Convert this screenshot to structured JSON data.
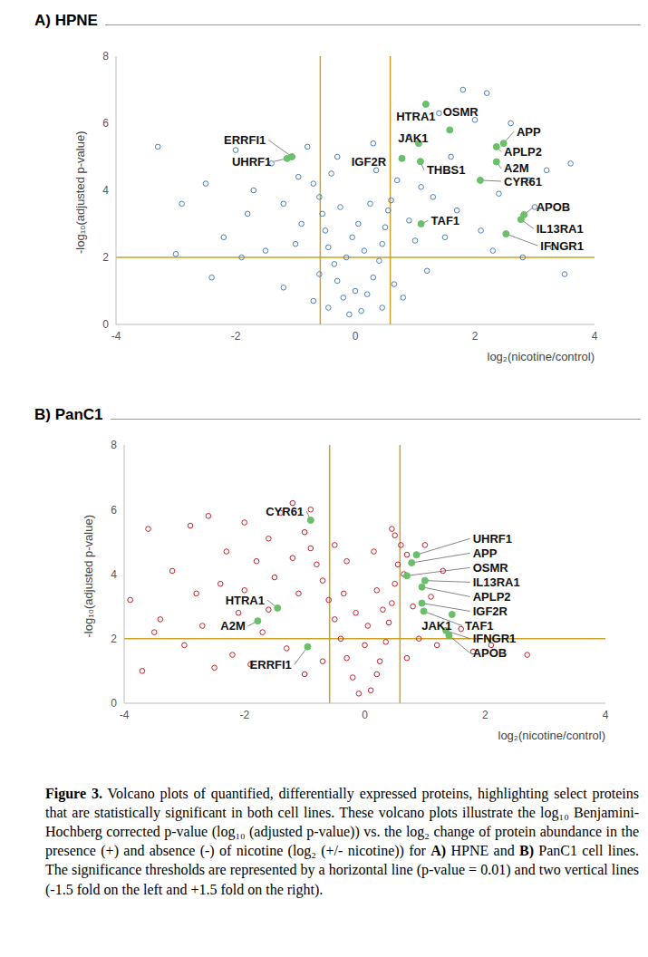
{
  "chart_data": [
    {
      "type": "scatter",
      "title": "A) HPNE",
      "x_label": "log₂(nicotine/control)",
      "y_label": "-log₁₀(adjusted p-value)",
      "xlim": [
        -4,
        4
      ],
      "xticks": [
        -4,
        -2,
        0,
        2,
        4
      ],
      "ylim": [
        0,
        8
      ],
      "yticks": [
        0,
        2,
        4,
        6,
        8
      ],
      "reference_lines": {
        "x": [
          -0.585,
          0.585
        ],
        "y": [
          2
        ],
        "color": "#c9a227"
      },
      "series": [
        {
          "color": "#4a7fc1",
          "marker": "open_circle",
          "points": [
            [
              -0.1,
              0.3
            ],
            [
              0.1,
              0.4
            ],
            [
              -0.2,
              0.8
            ],
            [
              0.2,
              0.9
            ],
            [
              -0.3,
              1.3
            ],
            [
              0.3,
              1.4
            ],
            [
              -0.35,
              1.8
            ],
            [
              0.4,
              1.9
            ],
            [
              -0.45,
              2.3
            ],
            [
              0.45,
              2.4
            ],
            [
              -0.5,
              2.8
            ],
            [
              0.5,
              2.9
            ],
            [
              -0.55,
              3.3
            ],
            [
              0.55,
              3.4
            ],
            [
              -0.6,
              3.8
            ],
            [
              0.6,
              3.7
            ],
            [
              -0.15,
              2.0
            ],
            [
              0.15,
              2.2
            ],
            [
              0.0,
              1.0
            ],
            [
              -0.05,
              2.6
            ],
            [
              0.05,
              3.0
            ],
            [
              -0.25,
              3.5
            ],
            [
              0.25,
              3.6
            ],
            [
              -0.7,
              4.2
            ],
            [
              0.7,
              4.3
            ],
            [
              -0.4,
              4.5
            ],
            [
              0.35,
              4.6
            ],
            [
              -0.9,
              3.0
            ],
            [
              0.9,
              3.1
            ],
            [
              -1.0,
              2.4
            ],
            [
              1.0,
              2.5
            ],
            [
              -1.2,
              3.6
            ],
            [
              1.3,
              3.8
            ],
            [
              -1.5,
              2.2
            ],
            [
              1.5,
              2.6
            ],
            [
              -1.8,
              3.3
            ],
            [
              1.7,
              3.4
            ],
            [
              -2.2,
              2.6
            ],
            [
              2.1,
              2.8
            ],
            [
              -2.5,
              4.2
            ],
            [
              2.4,
              3.9
            ],
            [
              -2.9,
              3.6
            ],
            [
              3.0,
              3.5
            ],
            [
              -1.4,
              4.8
            ],
            [
              1.6,
              5.0
            ],
            [
              -0.8,
              5.3
            ],
            [
              0.9,
              5.6
            ],
            [
              1.4,
              6.3
            ],
            [
              2.0,
              6.1
            ],
            [
              2.6,
              6.0
            ],
            [
              1.8,
              7.0
            ],
            [
              2.2,
              6.9
            ],
            [
              -3.3,
              5.3
            ],
            [
              -2.4,
              1.4
            ],
            [
              -1.9,
              2.0
            ],
            [
              3.5,
              1.5
            ],
            [
              2.8,
              2.0
            ],
            [
              -1.2,
              1.1
            ],
            [
              1.2,
              1.6
            ],
            [
              0.8,
              0.8
            ],
            [
              -0.7,
              0.7
            ],
            [
              0.45,
              0.5
            ],
            [
              -0.45,
              0.5
            ],
            [
              3.2,
              4.6
            ],
            [
              3.6,
              4.8
            ],
            [
              2.9,
              4.3
            ],
            [
              -1.7,
              4.0
            ],
            [
              -2.0,
              5.2
            ],
            [
              1.1,
              4.1
            ],
            [
              -0.95,
              4.4
            ],
            [
              0.3,
              5.4
            ],
            [
              -0.3,
              5.0
            ],
            [
              2.3,
              2.2
            ],
            [
              -0.6,
              1.5
            ],
            [
              0.65,
              1.2
            ],
            [
              -3.0,
              2.1
            ],
            [
              3.3,
              2.3
            ]
          ]
        }
      ],
      "highlights": {
        "color": "#6abf69",
        "points": [
          {
            "label": "HTRA1",
            "x": 1.18,
            "y": 6.57,
            "label_at": [
              0.64,
              6.2
            ]
          },
          {
            "label": "JAK1",
            "x": 1.06,
            "y": 5.4,
            "label_at": [
              0.67,
              5.55
            ]
          },
          {
            "label": "OSMR",
            "x": 1.58,
            "y": 5.8,
            "label_at": [
              1.42,
              6.35
            ]
          },
          {
            "label": "APP",
            "x": 2.48,
            "y": 5.4,
            "label_at": [
              2.65,
              5.75
            ]
          },
          {
            "label": "APLP2",
            "x": 2.36,
            "y": 5.3,
            "label_at": [
              2.44,
              5.15
            ]
          },
          {
            "label": "A2M",
            "x": 2.36,
            "y": 4.85,
            "label_at": [
              2.44,
              4.65
            ]
          },
          {
            "label": "CYR61",
            "x": 2.09,
            "y": 4.3,
            "label_at": [
              2.44,
              4.27
            ]
          },
          {
            "label": "THBS1",
            "x": 1.09,
            "y": 4.86,
            "label_at": [
              1.15,
              4.6
            ]
          },
          {
            "label": "IGF2R",
            "x": 0.78,
            "y": 4.95,
            "label_at": [
              -0.11,
              4.86
            ]
          },
          {
            "label": "ERRFI1",
            "x": -1.06,
            "y": 5.0,
            "label_at": [
              -1.45,
              5.5
            ]
          },
          {
            "label": "UHRF1",
            "x": -1.14,
            "y": 4.95,
            "label_at": [
              -1.36,
              4.86
            ]
          },
          {
            "label": "TAF1",
            "x": 1.1,
            "y": 3.0,
            "label_at": [
              1.22,
              3.1
            ]
          },
          {
            "label": "APOB",
            "x": 2.82,
            "y": 3.27,
            "label_at": [
              2.98,
              3.5
            ]
          },
          {
            "label": "IL13RA1",
            "x": 2.77,
            "y": 3.13,
            "label_at": [
              2.98,
              2.86
            ]
          },
          {
            "label": "IFNGR1",
            "x": 2.52,
            "y": 2.7,
            "label_at": [
              3.05,
              2.35
            ]
          }
        ]
      }
    },
    {
      "type": "scatter",
      "title": "B) PanC1",
      "x_label": "log₂(nicotine/control)",
      "y_label": "-log₁₀(adjusted p-value)",
      "xlim": [
        -4,
        4
      ],
      "xticks": [
        -4,
        -2,
        0,
        2,
        4
      ],
      "ylim": [
        0,
        8
      ],
      "yticks": [
        0,
        2,
        4,
        6,
        8
      ],
      "reference_lines": {
        "x": [
          -0.585,
          0.585
        ],
        "y": [
          2
        ],
        "color": "#c9a227"
      },
      "series": [
        {
          "color": "#c8202a",
          "marker": "open_circle",
          "points": [
            [
              -0.1,
              0.3
            ],
            [
              0.1,
              0.4
            ],
            [
              -0.2,
              0.8
            ],
            [
              0.2,
              0.9
            ],
            [
              -0.3,
              1.4
            ],
            [
              0.25,
              1.3
            ],
            [
              -0.4,
              2.0
            ],
            [
              0.35,
              1.9
            ],
            [
              -0.5,
              2.6
            ],
            [
              0.4,
              2.5
            ],
            [
              -0.6,
              3.2
            ],
            [
              0.45,
              3.1
            ],
            [
              -0.7,
              3.8
            ],
            [
              0.5,
              3.7
            ],
            [
              -0.8,
              4.3
            ],
            [
              0.55,
              4.3
            ],
            [
              -0.9,
              4.8
            ],
            [
              0.6,
              4.9
            ],
            [
              0.5,
              5.2
            ],
            [
              0.45,
              5.4
            ],
            [
              -1.0,
              5.3
            ],
            [
              -1.2,
              4.5
            ],
            [
              -1.4,
              5.9
            ],
            [
              -1.6,
              5.1
            ],
            [
              -1.8,
              4.4
            ],
            [
              -2.0,
              5.6
            ],
            [
              -2.3,
              4.7
            ],
            [
              -2.6,
              5.8
            ],
            [
              -2.9,
              5.5
            ],
            [
              -3.2,
              4.1
            ],
            [
              -3.6,
              5.4
            ],
            [
              -3.9,
              3.2
            ],
            [
              -3.4,
              2.6
            ],
            [
              -2.8,
              3.4
            ],
            [
              -2.4,
              3.7
            ],
            [
              -2.1,
              2.8
            ],
            [
              -1.7,
              2.2
            ],
            [
              -1.3,
              1.7
            ],
            [
              -1.1,
              3.4
            ],
            [
              -1.5,
              3.9
            ],
            [
              -2.5,
              1.1
            ],
            [
              -3.7,
              1.0
            ],
            [
              -3.0,
              1.8
            ],
            [
              -2.2,
              1.5
            ],
            [
              -1.9,
              1.2
            ],
            [
              -1.0,
              0.9
            ],
            [
              -0.7,
              1.3
            ],
            [
              0.7,
              1.4
            ],
            [
              0.9,
              2.0
            ],
            [
              1.1,
              3.3
            ],
            [
              1.3,
              4.1
            ],
            [
              1.2,
              1.8
            ],
            [
              1.6,
              2.3
            ],
            [
              2.1,
              1.8
            ],
            [
              2.7,
              1.5
            ],
            [
              1.8,
              1.6
            ],
            [
              0.8,
              3.0
            ],
            [
              0.65,
              4.0
            ],
            [
              1.0,
              4.9
            ],
            [
              0.7,
              4.6
            ],
            [
              -0.3,
              4.4
            ],
            [
              0.2,
              3.5
            ],
            [
              -0.15,
              2.8
            ],
            [
              0.0,
              1.8
            ],
            [
              0.05,
              2.4
            ],
            [
              -0.5,
              4.9
            ],
            [
              -0.9,
              6.0
            ],
            [
              -1.2,
              6.2
            ],
            [
              -3.5,
              2.2
            ],
            [
              -2.7,
              2.4
            ],
            [
              -1.6,
              2.9
            ],
            [
              -2.0,
              3.5
            ],
            [
              0.3,
              2.9
            ],
            [
              -0.35,
              3.4
            ],
            [
              0.15,
              4.7
            ]
          ]
        }
      ],
      "highlights": {
        "color": "#6abf69",
        "points": [
          {
            "label": "CYR61",
            "x": -0.9,
            "y": 5.67,
            "label_at": [
              -0.97,
              5.95
            ]
          },
          {
            "label": "UHRF1",
            "x": 0.86,
            "y": 4.6,
            "label_at": [
              1.75,
              5.1
            ]
          },
          {
            "label": "APP",
            "x": 0.78,
            "y": 4.35,
            "label_at": [
              1.75,
              4.65
            ]
          },
          {
            "label": "OSMR",
            "x": 0.7,
            "y": 3.95,
            "label_at": [
              1.75,
              4.2
            ]
          },
          {
            "label": "IL13RA1",
            "x": 1.0,
            "y": 3.8,
            "label_at": [
              1.75,
              3.75
            ]
          },
          {
            "label": "APLP2",
            "x": 0.95,
            "y": 3.6,
            "label_at": [
              1.75,
              3.3
            ]
          },
          {
            "label": "IGF2R",
            "x": 0.95,
            "y": 3.1,
            "label_at": [
              1.75,
              2.85
            ]
          },
          {
            "label": "TAF1",
            "x": 0.98,
            "y": 2.85,
            "label_at": [
              1.62,
              2.4
            ]
          },
          {
            "label": "JAK1",
            "x": 1.45,
            "y": 2.75,
            "label_at": [
              0.9,
              2.4
            ]
          },
          {
            "label": "IFNGR1",
            "x": 1.35,
            "y": 2.25,
            "label_at": [
              1.75,
              2.0
            ]
          },
          {
            "label": "APOB",
            "x": 1.4,
            "y": 2.1,
            "label_at": [
              1.75,
              1.55
            ]
          },
          {
            "label": "HTRA1",
            "x": -1.45,
            "y": 2.95,
            "label_at": [
              -1.62,
              3.2
            ]
          },
          {
            "label": "A2M",
            "x": -1.78,
            "y": 2.55,
            "label_at": [
              -1.94,
              2.39
            ]
          },
          {
            "label": "ERRFI1",
            "x": -0.95,
            "y": 1.75,
            "label_at": [
              -1.17,
              1.2
            ]
          }
        ]
      }
    }
  ],
  "caption": [
    "Figure 3.",
    " Volcano plots of quantified, differentially expressed proteins, highlighting select proteins that are statistically significant in both cell lines. These volcano plots illustrate the log₁₀ Benjamini-Hochberg corrected p-value (log₁₀ (adjusted p-value)) vs. the log₂ change of protein abundance in the presence (+) and absence (-) of nicotine (log₂ (+/- nicotine)) for ",
    "A)",
    " HPNE and ",
    "B)",
    " PanC1 cell lines. The significance thresholds are represented by a horizontal line (p-value = 0.01) and two vertical lines (-1.5 fold on the left and +1.5 fold on the right)."
  ]
}
